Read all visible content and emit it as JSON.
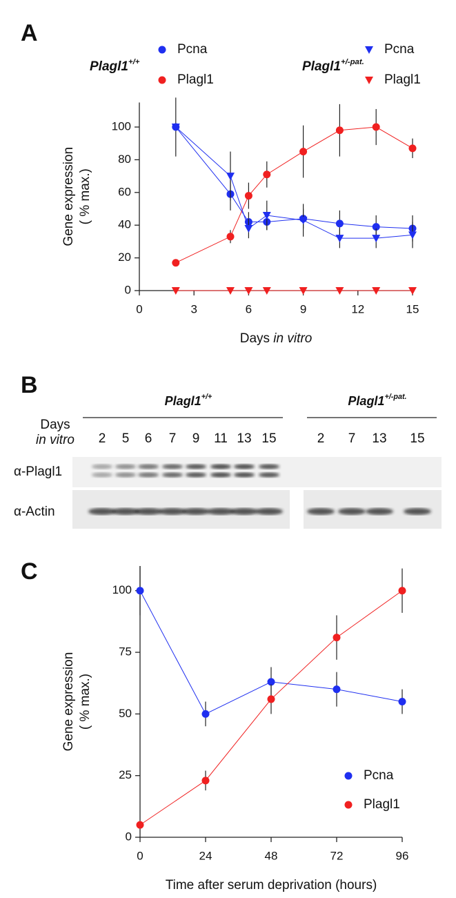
{
  "chart_data": [
    {
      "type": "line",
      "panel_label": "A",
      "legend_groups": [
        {
          "label": "Plagl1",
          "sup": "+/+"
        },
        {
          "label": "Plagl1",
          "sup": "+/-pat."
        }
      ],
      "x": [
        2,
        5,
        6,
        7,
        9,
        11,
        13,
        15
      ],
      "series": [
        {
          "name": "Pcna",
          "group": 0,
          "marker": "circle",
          "color": "#1f2ff0",
          "values": [
            100,
            59,
            42,
            42,
            44,
            41,
            39,
            38
          ],
          "errors": [
            18,
            10,
            6,
            5,
            6,
            8,
            7,
            8
          ]
        },
        {
          "name": "Plagl1",
          "group": 0,
          "marker": "circle",
          "color": "#f02020",
          "values": [
            17,
            33,
            58,
            71,
            85,
            98,
            100,
            87
          ],
          "errors": [
            1,
            4,
            8,
            8,
            16,
            16,
            11,
            6
          ]
        },
        {
          "name": "Pcna",
          "group": 1,
          "marker": "triangle",
          "color": "#1f2ff0",
          "values": [
            100,
            70,
            38,
            46,
            43,
            32,
            32,
            34
          ],
          "errors": [
            0,
            15,
            6,
            9,
            10,
            6,
            6,
            8
          ]
        },
        {
          "name": "Plagl1",
          "group": 1,
          "marker": "triangle",
          "color": "#f02020",
          "values": [
            0,
            0,
            0,
            0,
            0,
            0,
            0,
            0
          ],
          "errors": [
            0,
            0,
            0,
            0,
            0,
            0,
            0,
            0
          ]
        }
      ],
      "xlim": [
        0,
        15
      ],
      "xticks": [
        0,
        3,
        6,
        9,
        12,
        15
      ],
      "ylim": [
        0,
        115
      ],
      "yticks": [
        0,
        20,
        40,
        60,
        80,
        100
      ],
      "xlabel": "Days",
      "xlabel_italic": "in vitro",
      "ylabel": [
        "Gene expression",
        "( % max.)"
      ]
    },
    {
      "type": "line",
      "panel_label": "C",
      "x": [
        0,
        24,
        48,
        72,
        96
      ],
      "series": [
        {
          "name": "Pcna",
          "marker": "circle",
          "color": "#1f2ff0",
          "values": [
            100,
            50,
            63,
            60,
            55
          ],
          "errors": [
            10,
            5,
            6,
            7,
            5
          ]
        },
        {
          "name": "Plagl1",
          "marker": "circle",
          "color": "#f02020",
          "values": [
            5,
            23,
            56,
            81,
            100
          ],
          "errors": [
            1,
            4,
            6,
            9,
            9
          ]
        }
      ],
      "xlim": [
        0,
        96
      ],
      "xticks": [
        0,
        24,
        48,
        72,
        96
      ],
      "ylim": [
        0,
        110
      ],
      "yticks": [
        0,
        25,
        50,
        75,
        100
      ],
      "xlabel": "Time after serum deprivation (hours)",
      "ylabel": [
        "Gene expression",
        "( % max.)"
      ],
      "legend": "lower right"
    }
  ],
  "blot": {
    "panel_label": "B",
    "row_label": [
      "Days",
      "in vitro"
    ],
    "groups": [
      {
        "label": "Plagl1",
        "sup": "+/+",
        "lanes": [
          "2",
          "5",
          "6",
          "7",
          "9",
          "11",
          "13",
          "15"
        ]
      },
      {
        "label": "Plagl1",
        "sup": "+/-pat.",
        "lanes": [
          "2",
          "7",
          "13",
          "15"
        ]
      }
    ],
    "antibodies": [
      "α-Plagl1",
      "α-Actin"
    ]
  }
}
